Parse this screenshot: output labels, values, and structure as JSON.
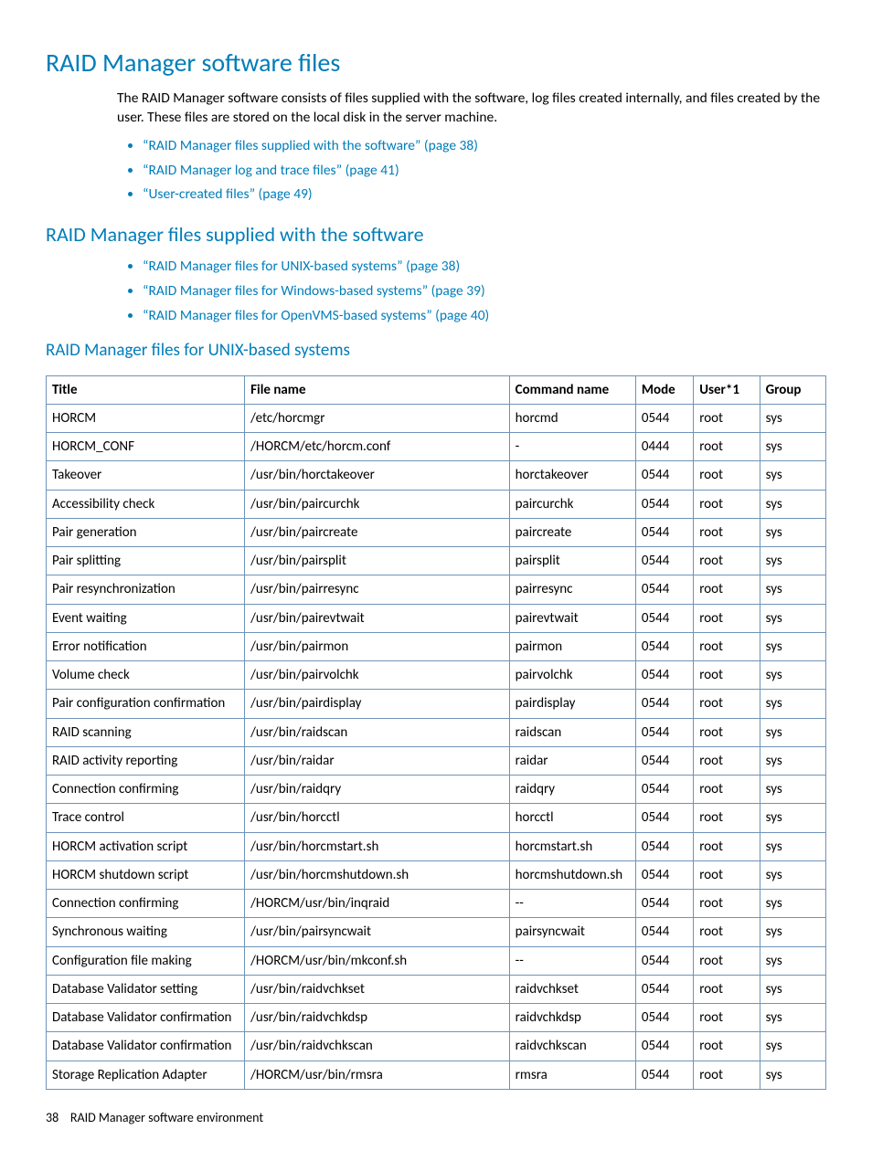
{
  "title_main": "RAID Manager software files",
  "intro": "The RAID Manager software consists of files supplied with the software, log files created internally, and files created by the user. These files are stored on the local disk in the server machine.",
  "links1": [
    "“RAID Manager files supplied with the software” (page 38)",
    "“RAID Manager log and trace files” (page 41)",
    "“User-created files” (page 49)"
  ],
  "title_sub1": "RAID Manager files supplied with the software",
  "links2": [
    "“RAID Manager files for UNIX-based systems” (page 38)",
    "“RAID Manager files for Windows-based systems” (page 39)",
    "“RAID Manager files for OpenVMS-based systems” (page 40)"
  ],
  "title_sub2": "RAID Manager files for UNIX-based systems",
  "table": {
    "columns": [
      "Title",
      "File name",
      "Command name",
      "Mode",
      "User*1",
      "Group"
    ],
    "col_widths": [
      "24%",
      "32%",
      "15%",
      "7%",
      "8%",
      "8%"
    ],
    "rows": [
      [
        "HORCM",
        "/etc/horcmgr",
        "horcmd",
        "0544",
        "root",
        "sys"
      ],
      [
        "HORCM_CONF",
        "/HORCM/etc/horcm.conf",
        "-",
        "0444",
        "root",
        "sys"
      ],
      [
        "Takeover",
        "/usr/bin/horctakeover",
        "horctakeover",
        "0544",
        "root",
        "sys"
      ],
      [
        "Accessibility check",
        "/usr/bin/paircurchk",
        "paircurchk",
        "0544",
        "root",
        "sys"
      ],
      [
        "Pair generation",
        "/usr/bin/paircreate",
        "paircreate",
        "0544",
        "root",
        "sys"
      ],
      [
        "Pair splitting",
        "/usr/bin/pairsplit",
        "pairsplit",
        "0544",
        "root",
        "sys"
      ],
      [
        "Pair resynchronization",
        "/usr/bin/pairresync",
        "pairresync",
        "0544",
        "root",
        "sys"
      ],
      [
        "Event waiting",
        "/usr/bin/pairevtwait",
        "pairevtwait",
        "0544",
        "root",
        "sys"
      ],
      [
        "Error notification",
        "/usr/bin/pairmon",
        "pairmon",
        "0544",
        "root",
        "sys"
      ],
      [
        "Volume check",
        "/usr/bin/pairvolchk",
        "pairvolchk",
        "0544",
        "root",
        "sys"
      ],
      [
        "Pair configuration confirmation",
        "/usr/bin/pairdisplay",
        "pairdisplay",
        "0544",
        "root",
        "sys"
      ],
      [
        "RAID scanning",
        "/usr/bin/raidscan",
        "raidscan",
        "0544",
        "root",
        "sys"
      ],
      [
        "RAID activity reporting",
        "/usr/bin/raidar",
        "raidar",
        "0544",
        "root",
        "sys"
      ],
      [
        "Connection confirming",
        "/usr/bin/raidqry",
        "raidqry",
        "0544",
        "root",
        "sys"
      ],
      [
        "Trace control",
        "/usr/bin/horcctl",
        "horcctl",
        "0544",
        "root",
        "sys"
      ],
      [
        "HORCM activation script",
        "/usr/bin/horcmstart.sh",
        "horcmstart.sh",
        "0544",
        "root",
        "sys"
      ],
      [
        "HORCM shutdown script",
        "/usr/bin/horcmshutdown.sh",
        "horcmshutdown.sh",
        "0544",
        "root",
        "sys"
      ],
      [
        "Connection confirming",
        "/HORCM/usr/bin/inqraid",
        "--",
        "0544",
        "root",
        "sys"
      ],
      [
        "Synchronous waiting",
        "/usr/bin/pairsyncwait",
        "pairsyncwait",
        "0544",
        "root",
        "sys"
      ],
      [
        "Configuration file making",
        "/HORCM/usr/bin/mkconf.sh",
        "--",
        "0544",
        "root",
        "sys"
      ],
      [
        "Database Validator setting",
        "/usr/bin/raidvchkset",
        "raidvchkset",
        "0544",
        "root",
        "sys"
      ],
      [
        "Database Validator confirmation",
        "/usr/bin/raidvchkdsp",
        "raidvchkdsp",
        "0544",
        "root",
        "sys"
      ],
      [
        "Database Validator confirmation",
        "/usr/bin/raidvchkscan",
        "raidvchkscan",
        "0544",
        "root",
        "sys"
      ],
      [
        "Storage Replication Adapter",
        "/HORCM/usr/bin/rmsra",
        "rmsra",
        "0544",
        "root",
        "sys"
      ]
    ]
  },
  "footer_page": "38",
  "footer_text": "RAID Manager software environment"
}
